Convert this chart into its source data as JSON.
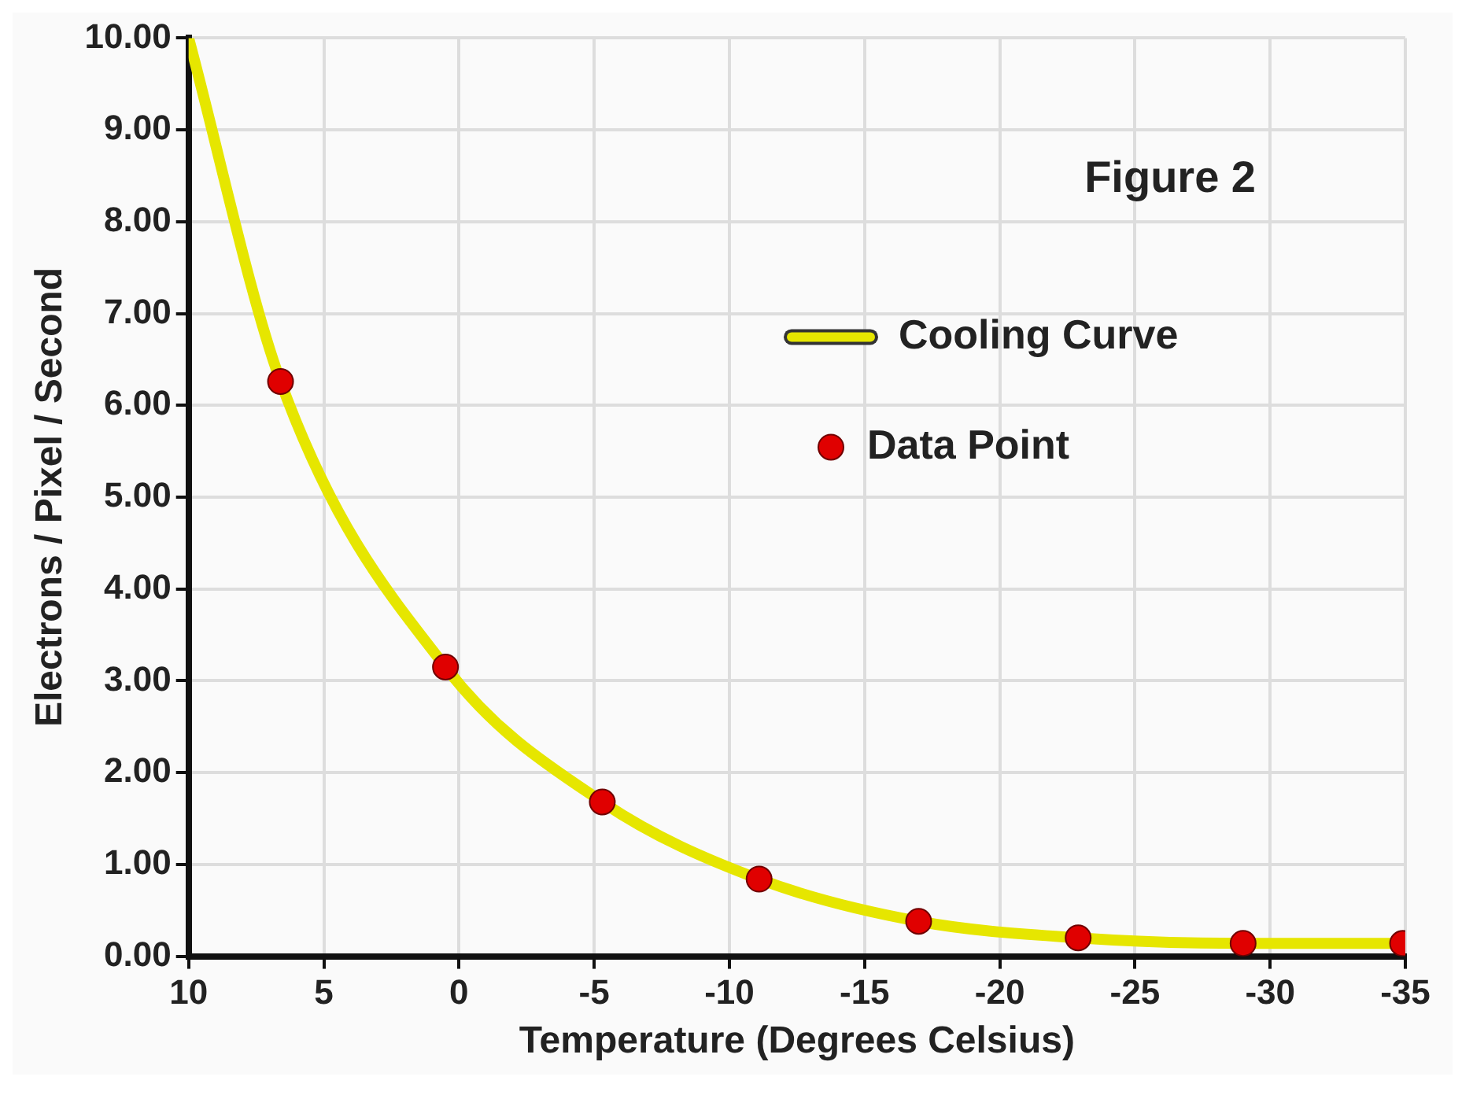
{
  "chart_data": {
    "type": "line",
    "xlabel": "Temperature (Degrees Celsius)",
    "ylabel": "Electrons / Pixel / Second",
    "annotations": [
      "Figure 2"
    ],
    "series": [
      {
        "name": "Cooling Curve",
        "type": "line",
        "color": "#e6e600",
        "marker": "none",
        "x": [
          10,
          6.6,
          0.5,
          -5.3,
          -11.1,
          -17,
          -22.9,
          -29,
          -34.9
        ],
        "values": [
          10,
          6.26,
          3.15,
          1.68,
          0.84,
          0.38,
          0.2,
          0.14,
          0.14
        ]
      },
      {
        "name": "Data Point",
        "type": "scatter",
        "color": "#e00000",
        "marker": "circle",
        "x": [
          6.6,
          0.5,
          -5.3,
          -11.1,
          -17,
          -22.9,
          -29,
          -34.9
        ],
        "values": [
          6.26,
          3.15,
          1.68,
          0.84,
          0.38,
          0.2,
          0.14,
          0.14
        ]
      }
    ],
    "xlim": [
      10,
      -35
    ],
    "xticks": [
      10,
      5,
      0,
      -5,
      -10,
      -15,
      -20,
      -25,
      -30,
      -35
    ],
    "ylim": [
      0,
      10
    ],
    "yticks": [
      {
        "value": 0,
        "label": "0.00"
      },
      {
        "value": 1,
        "label": "1.00"
      },
      {
        "value": 2,
        "label": "2.00"
      },
      {
        "value": 3,
        "label": "3.00"
      },
      {
        "value": 4,
        "label": "4.00"
      },
      {
        "value": 5,
        "label": "5.00"
      },
      {
        "value": 6,
        "label": "6.00"
      },
      {
        "value": 7,
        "label": "7.00"
      },
      {
        "value": 8,
        "label": "8.00"
      },
      {
        "value": 9,
        "label": "9.00"
      },
      {
        "value": 10,
        "label": "10.00"
      }
    ],
    "grid": true,
    "legend": "top right"
  }
}
